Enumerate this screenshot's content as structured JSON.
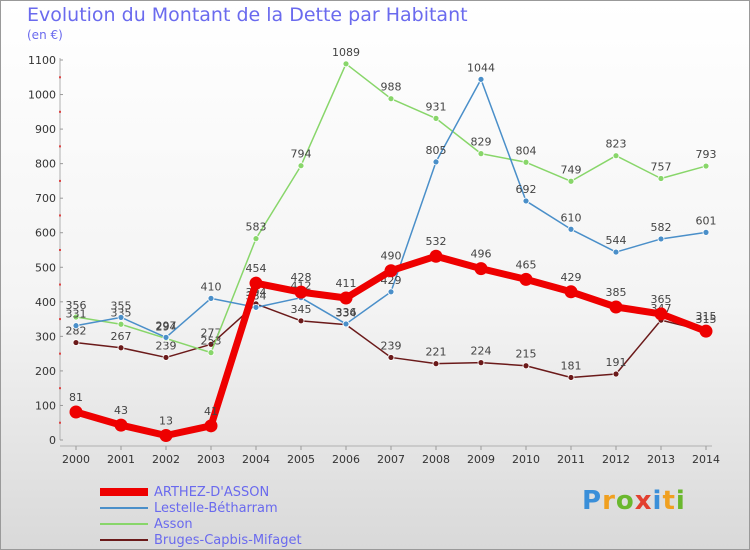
{
  "title": "Evolution du Montant de la Dette par Habitant",
  "unit": "(en €)",
  "logo": {
    "letters": [
      "P",
      "r",
      "o",
      "x",
      "i",
      "t",
      "i"
    ],
    "colors": [
      "#3a8fd9",
      "#f0a020",
      "#6ab82e",
      "#e24030",
      "#3a8fd9",
      "#f0a020",
      "#6ab82e"
    ]
  },
  "chart_data": {
    "type": "line",
    "x": [
      "2000",
      "2001",
      "2002",
      "2003",
      "2004",
      "2005",
      "2006",
      "2007",
      "2008",
      "2009",
      "2010",
      "2011",
      "2012",
      "2013",
      "2014"
    ],
    "ylim": [
      0,
      1100
    ],
    "yticks": [
      0,
      100,
      200,
      300,
      400,
      500,
      600,
      700,
      800,
      900,
      1000,
      1100
    ],
    "grid": false,
    "legend_position": "bottom-left",
    "series": [
      {
        "name": "Bruges-Capbis-Mifaget",
        "color": "#6b1a1a",
        "width": 1.5,
        "values": [
          282,
          267,
          239,
          277,
          394,
          345,
          334,
          239,
          221,
          224,
          215,
          181,
          191,
          347,
          315
        ],
        "labels": [
          "282",
          "267",
          "239",
          "277",
          "394",
          "345",
          "334",
          "239",
          "221",
          "224",
          "215",
          "181",
          "191",
          "347",
          "315"
        ]
      },
      {
        "name": "Asson",
        "color": "#88d66a",
        "width": 1.5,
        "values": [
          356,
          335,
          294,
          253,
          583,
          794,
          1089,
          988,
          931,
          829,
          804,
          749,
          823,
          757,
          793
        ],
        "labels": [
          "356",
          "335",
          "294",
          "253",
          "583",
          "794",
          "1089",
          "988",
          "931",
          "829",
          "804",
          "749",
          "823",
          "757",
          "793"
        ]
      },
      {
        "name": "Lestelle-Bétharram",
        "color": "#4a8fc9",
        "width": 1.5,
        "values": [
          331,
          355,
          297,
          410,
          384,
          412,
          336,
          429,
          805,
          1044,
          692,
          610,
          544,
          582,
          601
        ],
        "labels": [
          "331",
          "355",
          "297",
          "410",
          "384",
          "412",
          "336",
          "429",
          "805",
          "1044",
          "692",
          "610",
          "544",
          "582",
          "601"
        ]
      },
      {
        "name": "ARTHEZ-D'ASSON",
        "color": "#ee0000",
        "width": 7,
        "values": [
          81,
          43,
          13,
          41,
          454,
          428,
          411,
          490,
          532,
          496,
          465,
          429,
          385,
          365,
          315
        ],
        "labels": [
          "81",
          "43",
          "13",
          "41",
          "454",
          "428",
          "411",
          "490",
          "532",
          "496",
          "465",
          "429",
          "385",
          "365",
          "315"
        ]
      }
    ],
    "legend_order": [
      "ARTHEZ-D'ASSON",
      "Lestelle-Bétharram",
      "Asson",
      "Bruges-Capbis-Mifaget"
    ]
  }
}
